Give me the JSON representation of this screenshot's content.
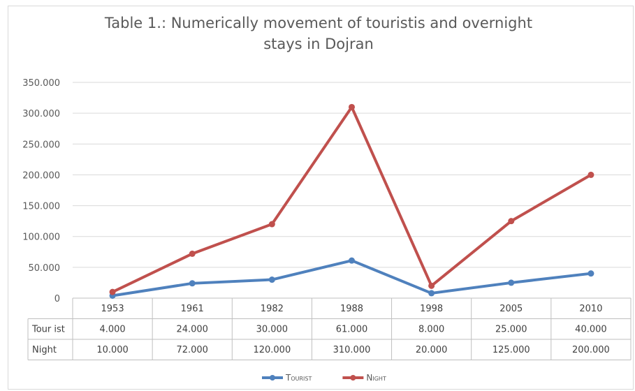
{
  "chart_data": {
    "type": "line",
    "title": "Table 1.: Numerically movement of touristis and overnight stays in Dojran",
    "title_lines": [
      "Table 1.: Numerically movement of touristis and overnight",
      "stays in Dojran"
    ],
    "categories": [
      "1953",
      "1961",
      "1982",
      "1988",
      "1998",
      "2005",
      "2010"
    ],
    "series": [
      {
        "name": "Tourist",
        "table_label": "Tour ist",
        "values": [
          4000,
          24000,
          30000,
          61000,
          8000,
          25000,
          40000
        ],
        "labels": [
          "4.000",
          "24.000",
          "30.000",
          "61.000",
          "8.000",
          "25.000",
          "40.000"
        ],
        "color": "#4f81bd"
      },
      {
        "name": "Night",
        "table_label": "Night",
        "values": [
          10000,
          72000,
          120000,
          310000,
          20000,
          125000,
          200000
        ],
        "labels": [
          "10.000",
          "72.000",
          "120.000",
          "310.000",
          "20.000",
          "125.000",
          "200.000"
        ],
        "color": "#c0504d"
      }
    ],
    "ylim": [
      0,
      350000
    ],
    "yticks": [
      0,
      50000,
      100000,
      150000,
      200000,
      250000,
      300000,
      350000
    ],
    "ytick_labels": [
      "0",
      "50.000",
      "100.000",
      "150.000",
      "200.000",
      "250.000",
      "300.000",
      "350.000"
    ],
    "grid": true,
    "legend_position": "bottom",
    "data_table": true
  }
}
